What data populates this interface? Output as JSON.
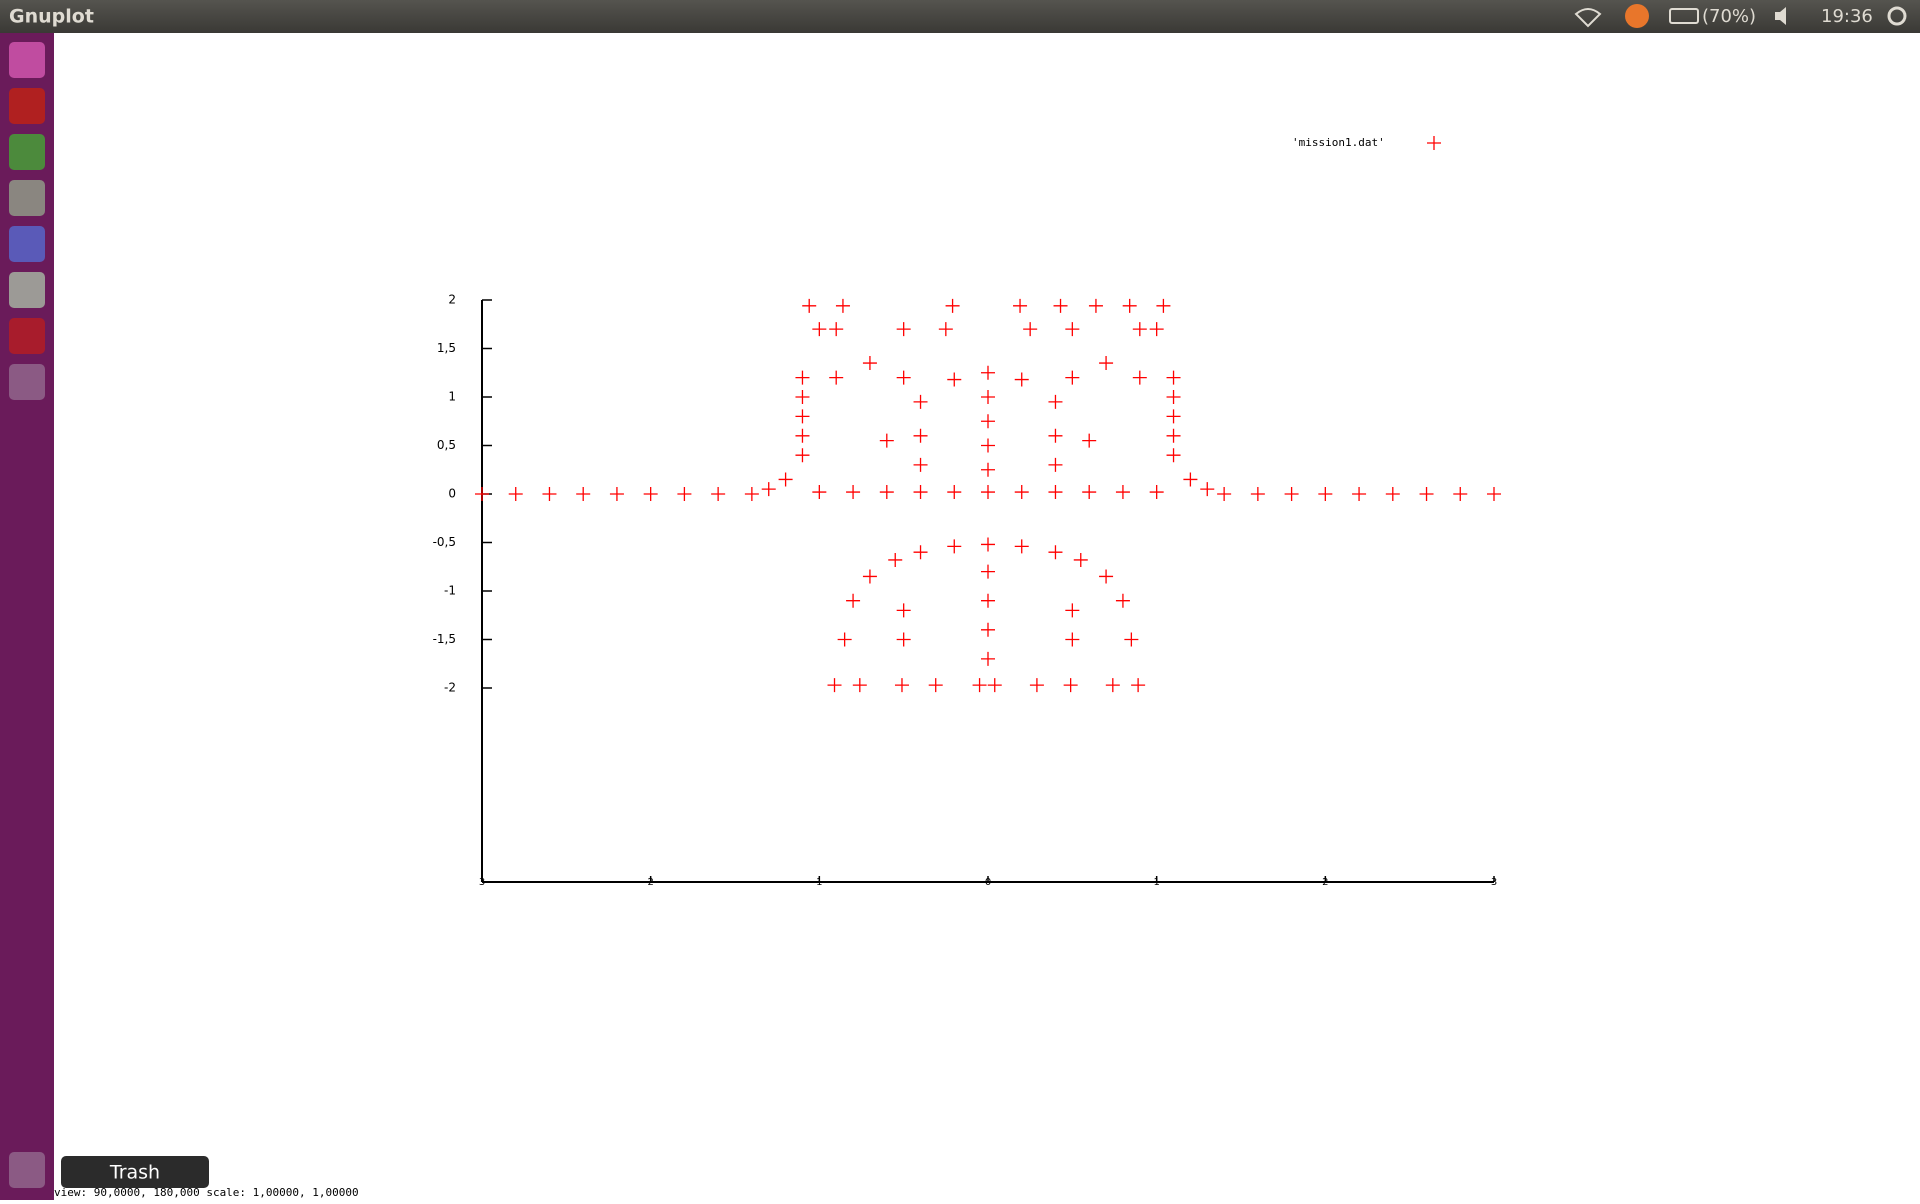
{
  "window": {
    "title": "Gnuplot",
    "battery": "(70%)",
    "clock": "19:36",
    "status_line": "view: 90,0000, 180,000   scale: 1,00000, 1,00000"
  },
  "launcher": {
    "tooltip": "Trash"
  },
  "chart_data": {
    "type": "scatter",
    "x": [
      -3,
      -2.8,
      -2.6,
      -2.4,
      -2.2,
      -2,
      -1.8,
      -1.6,
      -1.4,
      -1.3,
      -1.2,
      -1.1,
      -1,
      -0.8,
      -0.6,
      -0.4,
      -0.2,
      0,
      0.2,
      0.4,
      0.6,
      0.8,
      1,
      1.1,
      1.2,
      1.3,
      1.4,
      1.6,
      1.8,
      2,
      2.2,
      2.4,
      2.6,
      2.8,
      3,
      -1.1,
      -1.1,
      -1.1,
      -1.1,
      1.1,
      1.1,
      1.1,
      1.1,
      -1.06,
      -0.86,
      -0.21,
      0.19,
      0.43,
      0.64,
      0.84,
      1.04,
      -1,
      -0.9,
      -0.5,
      -0.25,
      0.25,
      0.5,
      0.9,
      1,
      -0.6,
      -0.4,
      -0.2,
      0,
      0.2,
      0.4,
      0.6,
      -0.9,
      -0.7,
      -0.5,
      0.5,
      0.7,
      0.9,
      0,
      0,
      0,
      0,
      -0.4,
      -0.4,
      0.4,
      0.4,
      -0.85,
      -0.8,
      -0.7,
      -0.55,
      -0.4,
      -0.2,
      0,
      0.2,
      0.4,
      0.55,
      0.7,
      0.8,
      0.85,
      0,
      0,
      0,
      0,
      -0.5,
      -0.5,
      0.5,
      0.5,
      -0.91,
      -0.76,
      -0.51,
      -0.31,
      -0.05,
      0.04,
      0.29,
      0.49,
      0.74,
      0.89
    ],
    "series": [
      {
        "name": "'mission1.dat'",
        "color": "#ff0000",
        "values": [
          0,
          0,
          0,
          0,
          0,
          0,
          0,
          0,
          0,
          0.05,
          0.15,
          0.4,
          0.02,
          0.02,
          0.02,
          0.02,
          0.02,
          0.02,
          0.02,
          0.02,
          0.02,
          0.02,
          0.02,
          0.4,
          0.15,
          0.05,
          0,
          0,
          0,
          0,
          0,
          0,
          0,
          0,
          0,
          0.6,
          0.8,
          1,
          1.2,
          0.6,
          0.8,
          1,
          1.2,
          1.94,
          1.94,
          1.94,
          1.94,
          1.94,
          1.94,
          1.94,
          1.94,
          1.7,
          1.7,
          1.7,
          1.7,
          1.7,
          1.7,
          1.7,
          1.7,
          0.55,
          0.95,
          1.18,
          1.25,
          1.18,
          0.95,
          0.55,
          1.2,
          1.35,
          1.2,
          1.2,
          1.35,
          1.2,
          0.25,
          0.5,
          0.75,
          1,
          0.3,
          0.6,
          0.3,
          0.6,
          -1.5,
          -1.1,
          -0.85,
          -0.68,
          -0.6,
          -0.54,
          -0.52,
          -0.54,
          -0.6,
          -0.68,
          -0.85,
          -1.1,
          -1.5,
          -0.8,
          -1.1,
          -1.4,
          -1.7,
          -1.2,
          -1.5,
          -1.2,
          -1.5,
          -1.97,
          -1.97,
          -1.97,
          -1.97,
          -1.97,
          -1.97,
          -1.97,
          -1.97,
          -1.97,
          -1.97
        ]
      }
    ],
    "xlim": [
      -3,
      3
    ],
    "xticks": [
      {
        "value": -3,
        "label": "3"
      },
      {
        "value": -2,
        "label": "2"
      },
      {
        "value": -1,
        "label": "1"
      },
      0,
      1,
      2,
      3
    ],
    "ylim": [
      -4,
      2
    ],
    "yticks": [
      {
        "value": -2,
        "label": "-2"
      },
      {
        "value": -1.5,
        "label": "-1,5"
      },
      -1,
      {
        "value": -0.5,
        "label": "-0,5"
      },
      0,
      {
        "value": 0.5,
        "label": "0,5"
      },
      1,
      {
        "value": 1.5,
        "label": "1,5"
      },
      2
    ],
    "grid": false
  }
}
